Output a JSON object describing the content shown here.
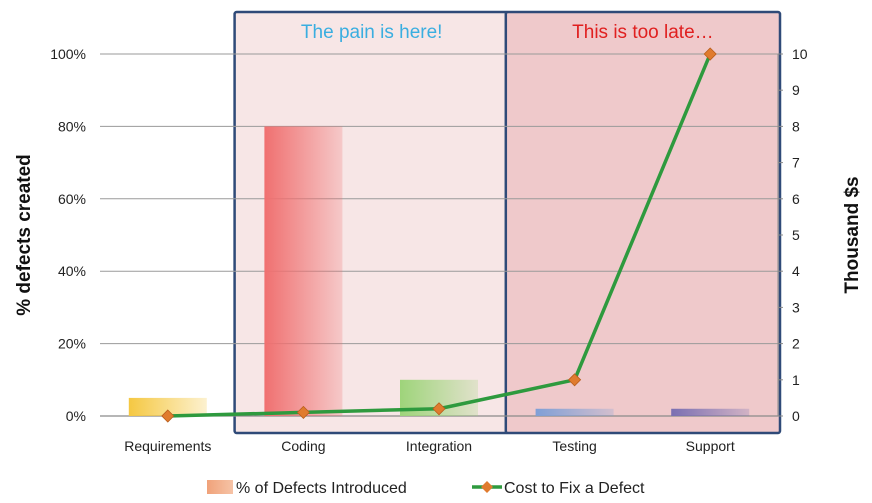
{
  "chart_data": {
    "type": "bar",
    "categories": [
      "Requirements",
      "Coding",
      "Integration",
      "Testing",
      "Support"
    ],
    "series": [
      {
        "name": "% of Defects Introduced",
        "kind": "bar",
        "axis": "left",
        "values": [
          5,
          80,
          10,
          2,
          2
        ],
        "colors": [
          "#f5c842",
          "#f07070",
          "#9ed47a",
          "#7f9fd6",
          "#7a6fb2"
        ]
      },
      {
        "name": "Cost to Fix a Defect",
        "kind": "line",
        "axis": "right",
        "values": [
          0,
          0.1,
          0.2,
          1,
          10
        ],
        "line_color": "#2e9a3e",
        "marker_color": "#e07b2e"
      }
    ],
    "ylabel_left": "% defects created",
    "ylabel_right": "Thousand $s",
    "ylim_left": [
      0,
      100
    ],
    "ylim_right": [
      0,
      10
    ],
    "yticks_left": [
      "0%",
      "20%",
      "40%",
      "60%",
      "80%",
      "100%"
    ],
    "yticks_right": [
      "0",
      "1",
      "2",
      "3",
      "4",
      "5",
      "6",
      "7",
      "8",
      "9",
      "10"
    ],
    "grid": true,
    "legend_position": "bottom",
    "annotations": [
      {
        "text": "The pain is here!",
        "text_color": "#3aaee0",
        "box_fill": "#f7e6e6",
        "border_color": "#2f4a78",
        "spans": [
          "Coding",
          "Integration"
        ]
      },
      {
        "text": "This is too late…",
        "text_color": "#e02020",
        "box_fill": "#efc9cb",
        "border_color": "#2f4a78",
        "spans": [
          "Testing",
          "Support"
        ]
      }
    ]
  }
}
